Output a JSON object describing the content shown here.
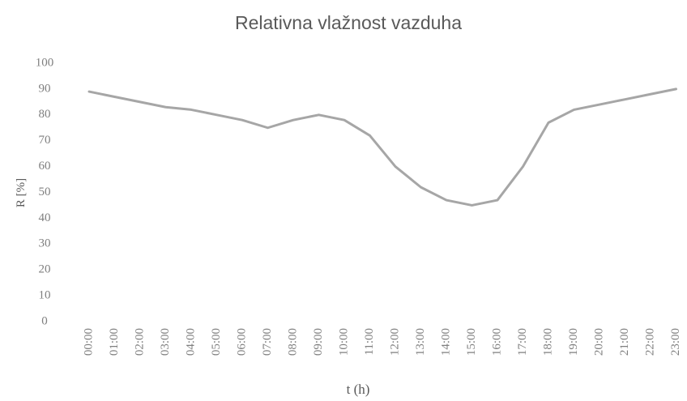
{
  "chart_data": {
    "type": "line",
    "title": "Relativna vlažnost vazduha",
    "x_label": "t (h)",
    "y_label": "R [%]",
    "categories": [
      "00:00",
      "01:00",
      "02:00",
      "03:00",
      "04:00",
      "05:00",
      "06:00",
      "07:00",
      "08:00",
      "09:00",
      "10:00",
      "11:00",
      "12:00",
      "13:00",
      "14:00",
      "15:00",
      "16:00",
      "17:00",
      "18:00",
      "19:00",
      "20:00",
      "21:00",
      "22:00",
      "23:00"
    ],
    "series": [
      {
        "name": "R",
        "color": "#a6a6a6",
        "values": [
          89,
          87,
          85,
          83,
          82,
          80,
          78,
          75,
          78,
          80,
          78,
          72,
          60,
          52,
          47,
          45,
          47,
          60,
          77,
          82,
          84,
          86,
          88,
          90
        ]
      }
    ],
    "ylim": [
      0,
      100
    ],
    "yticks": [
      0,
      10,
      20,
      30,
      40,
      50,
      60,
      70,
      80,
      90,
      100
    ],
    "grid": false
  }
}
